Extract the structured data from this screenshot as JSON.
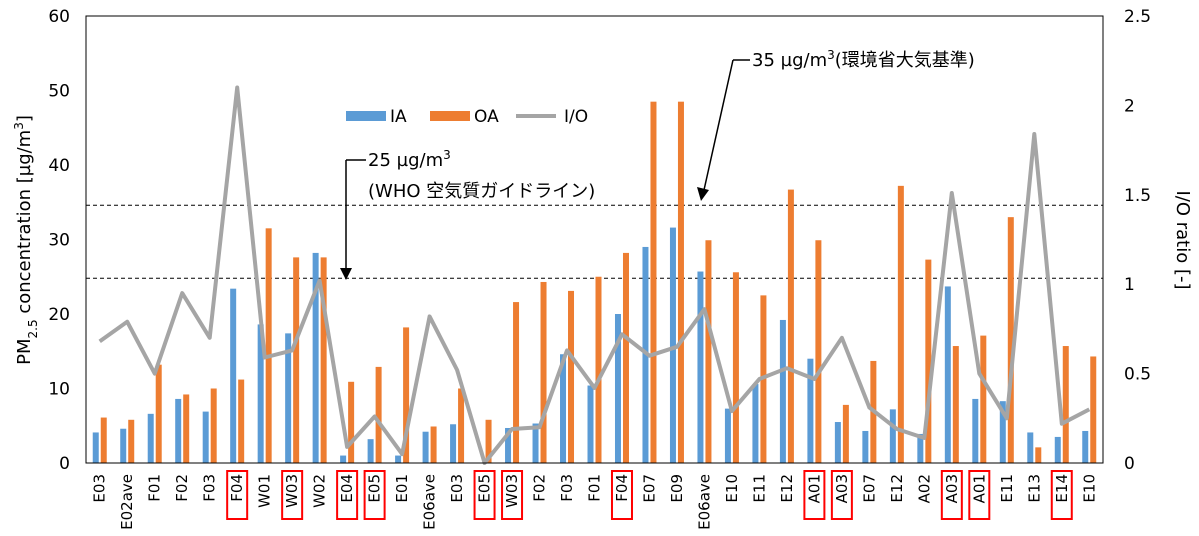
{
  "chart_data": {
    "type": "bar",
    "categories": [
      "E03",
      "E02ave",
      "F01",
      "F02",
      "F03",
      "F04",
      "W01",
      "W03",
      "W02",
      "E04",
      "E05",
      "E01",
      "E06ave",
      "E03",
      "E05",
      "W03",
      "F02",
      "F03",
      "F01",
      "F04",
      "E07",
      "E09",
      "E06ave",
      "E10",
      "E11",
      "E12",
      "A01",
      "A03",
      "E07",
      "E12",
      "A02",
      "A03",
      "A01",
      "E11",
      "E13",
      "E14",
      "E10"
    ],
    "highlighted": [
      false,
      false,
      false,
      false,
      false,
      true,
      false,
      true,
      false,
      true,
      true,
      false,
      false,
      false,
      true,
      true,
      false,
      false,
      false,
      true,
      false,
      false,
      false,
      false,
      false,
      false,
      true,
      true,
      false,
      false,
      false,
      true,
      true,
      false,
      false,
      true,
      false
    ],
    "series": [
      {
        "name": "IA",
        "axis": "left",
        "color": "#5b9bd5",
        "values": [
          4.1,
          4.6,
          6.6,
          8.6,
          6.9,
          23.4,
          18.6,
          17.4,
          28.2,
          1.0,
          3.2,
          1.0,
          4.2,
          5.2,
          0.0,
          4.7,
          5.3,
          14.6,
          10.4,
          20.0,
          29.0,
          31.6,
          25.7,
          7.3,
          10.6,
          19.2,
          14.0,
          5.5,
          4.3,
          7.2,
          3.9,
          23.7,
          8.6,
          8.3,
          4.1,
          3.5,
          4.3
        ]
      },
      {
        "name": "OA",
        "axis": "left",
        "color": "#ed7d31",
        "values": [
          6.1,
          5.8,
          13.2,
          9.2,
          10.0,
          11.2,
          31.5,
          27.6,
          27.6,
          10.9,
          12.9,
          18.2,
          4.9,
          10.0,
          5.8,
          21.6,
          24.3,
          23.1,
          25.0,
          28.2,
          48.5,
          48.5,
          29.9,
          25.6,
          22.5,
          36.7,
          29.9,
          7.8,
          13.7,
          37.2,
          27.3,
          15.7,
          17.1,
          33.0,
          2.1,
          15.7,
          14.3
        ]
      },
      {
        "name": "I/O",
        "axis": "right",
        "color": "#a5a5a5",
        "values": [
          0.68,
          0.79,
          0.5,
          0.95,
          0.7,
          2.1,
          0.59,
          0.63,
          1.02,
          0.09,
          0.26,
          0.05,
          0.82,
          0.52,
          0.0,
          0.19,
          0.2,
          0.63,
          0.42,
          0.72,
          0.6,
          0.65,
          0.86,
          0.29,
          0.47,
          0.53,
          0.47,
          0.7,
          0.31,
          0.19,
          0.14,
          1.51,
          0.5,
          0.25,
          1.84,
          0.22,
          0.3
        ]
      }
    ],
    "ylabel_left_main": "PM",
    "ylabel_left_sub": "2.5",
    "ylabel_left_rest": " concentration [µg/m",
    "ylabel_left_sup": "3",
    "ylabel_left_end": "]",
    "ylabel_right": "I/O ratio [-]",
    "ylim_left": [
      0,
      60
    ],
    "ylim_right": [
      0,
      2.5
    ],
    "yticks_left": [
      "0",
      "10",
      "20",
      "30",
      "40",
      "50",
      "60"
    ],
    "yticks_right": [
      "0",
      "0.5",
      "1",
      "1.5",
      "2",
      "2.5"
    ],
    "reference_lines": [
      {
        "value": 24.8
      },
      {
        "value": 34.6
      }
    ],
    "annotation_25": {
      "line1": "25 µg/m",
      "sup": "3",
      "line2": "(WHO 空気質ガイドライン)"
    },
    "annotation_35": {
      "text": "35 µg/m",
      "sup": "3",
      "rest": "(環境省大気基準)"
    },
    "legend": [
      {
        "label": "IA",
        "color": "#5b9bd5",
        "kind": "bar"
      },
      {
        "label": "OA",
        "color": "#ed7d31",
        "kind": "bar"
      },
      {
        "label": "I/O",
        "color": "#a5a5a5",
        "kind": "line"
      }
    ],
    "highlight_color": "#ff0000"
  }
}
